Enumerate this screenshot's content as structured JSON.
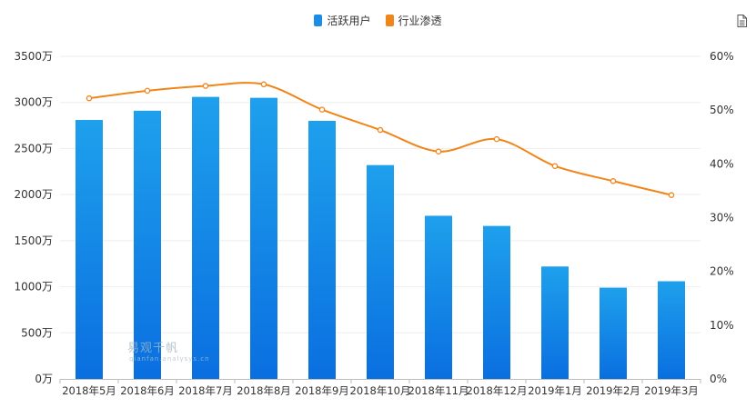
{
  "legend": {
    "active_users": "活跃用户",
    "penetration": "行业渗透"
  },
  "watermark": {
    "title": "易观千帆",
    "subtitle": "qianfan.analysys.cn"
  },
  "icons": {
    "export": "document-icon"
  },
  "colors": {
    "bar_top": "#1ea0ec",
    "bar_bottom": "#0a6fe0",
    "bar_legend": "#1a8ee6",
    "line": "#f08519",
    "grid": "#eeeeee"
  },
  "chart_data": {
    "type": "bar",
    "categories": [
      "2018年5月",
      "2018年6月",
      "2018年7月",
      "2018年8月",
      "2018年9月",
      "2018年10月",
      "2018年11月",
      "2018年12月",
      "2019年1月",
      "2019年2月",
      "2019年3月"
    ],
    "series": [
      {
        "name": "活跃用户",
        "type": "bar",
        "axis": "left",
        "values": [
          2810,
          2910,
          3060,
          3050,
          2800,
          2320,
          1770,
          1660,
          1220,
          990,
          1060
        ]
      },
      {
        "name": "行业渗透",
        "type": "line",
        "axis": "right",
        "values": [
          52.2,
          53.6,
          54.5,
          54.8,
          50.1,
          46.3,
          42.3,
          44.6,
          39.6,
          36.8,
          34.2
        ]
      }
    ],
    "y_left": {
      "ylim": [
        0,
        3500
      ],
      "ticks": [
        "0万",
        "500万",
        "1000万",
        "1500万",
        "2000万",
        "2500万",
        "3000万",
        "3500万"
      ]
    },
    "y_right": {
      "ylim": [
        0,
        60
      ],
      "ticks": [
        "0%",
        "10%",
        "20%",
        "30%",
        "40%",
        "50%",
        "60%"
      ]
    },
    "grid": true,
    "legend_position": "top-center"
  }
}
